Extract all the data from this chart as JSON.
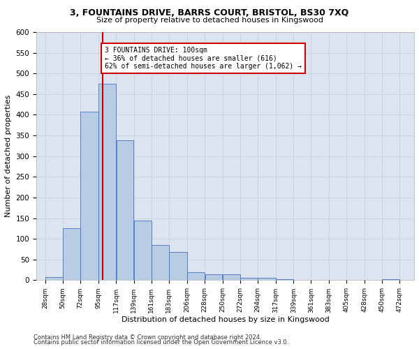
{
  "title_line1": "3, FOUNTAINS DRIVE, BARRS COURT, BRISTOL, BS30 7XQ",
  "title_line2": "Size of property relative to detached houses in Kingswood",
  "xlabel": "Distribution of detached houses by size in Kingswood",
  "ylabel": "Number of detached properties",
  "footer_line1": "Contains HM Land Registry data © Crown copyright and database right 2024.",
  "footer_line2": "Contains public sector information licensed under the Open Government Licence v3.0.",
  "bar_left_edges": [
    28,
    50,
    72,
    95,
    117,
    139,
    161,
    183,
    206,
    228,
    250,
    272,
    294,
    317,
    339,
    361,
    383,
    405,
    428,
    450
  ],
  "bar_widths": [
    22,
    22,
    23,
    22,
    22,
    22,
    22,
    23,
    22,
    22,
    22,
    22,
    23,
    22,
    22,
    22,
    22,
    23,
    22,
    22
  ],
  "bar_heights": [
    8,
    125,
    407,
    475,
    338,
    145,
    85,
    68,
    20,
    14,
    14,
    5,
    5,
    3,
    0,
    0,
    0,
    0,
    0,
    3
  ],
  "bar_color": "#b8cce4",
  "bar_edgecolor": "#4472c4",
  "tick_labels": [
    "28sqm",
    "50sqm",
    "72sqm",
    "95sqm",
    "117sqm",
    "139sqm",
    "161sqm",
    "183sqm",
    "206sqm",
    "228sqm",
    "250sqm",
    "272sqm",
    "294sqm",
    "317sqm",
    "339sqm",
    "361sqm",
    "383sqm",
    "405sqm",
    "428sqm",
    "450sqm",
    "472sqm"
  ],
  "tick_positions": [
    28,
    50,
    72,
    95,
    117,
    139,
    161,
    183,
    206,
    228,
    250,
    272,
    294,
    317,
    339,
    361,
    383,
    405,
    428,
    450,
    472
  ],
  "ylim": [
    0,
    600
  ],
  "yticks": [
    0,
    50,
    100,
    150,
    200,
    250,
    300,
    350,
    400,
    450,
    500,
    550,
    600
  ],
  "xlim": [
    17,
    490
  ],
  "property_line_x": 100,
  "property_line_color": "#cc0000",
  "annotation_text": "3 FOUNTAINS DRIVE: 100sqm\n← 36% of detached houses are smaller (616)\n62% of semi-detached houses are larger (1,062) →",
  "grid_color": "#c8d4e4",
  "background_color": "#dce4f0"
}
